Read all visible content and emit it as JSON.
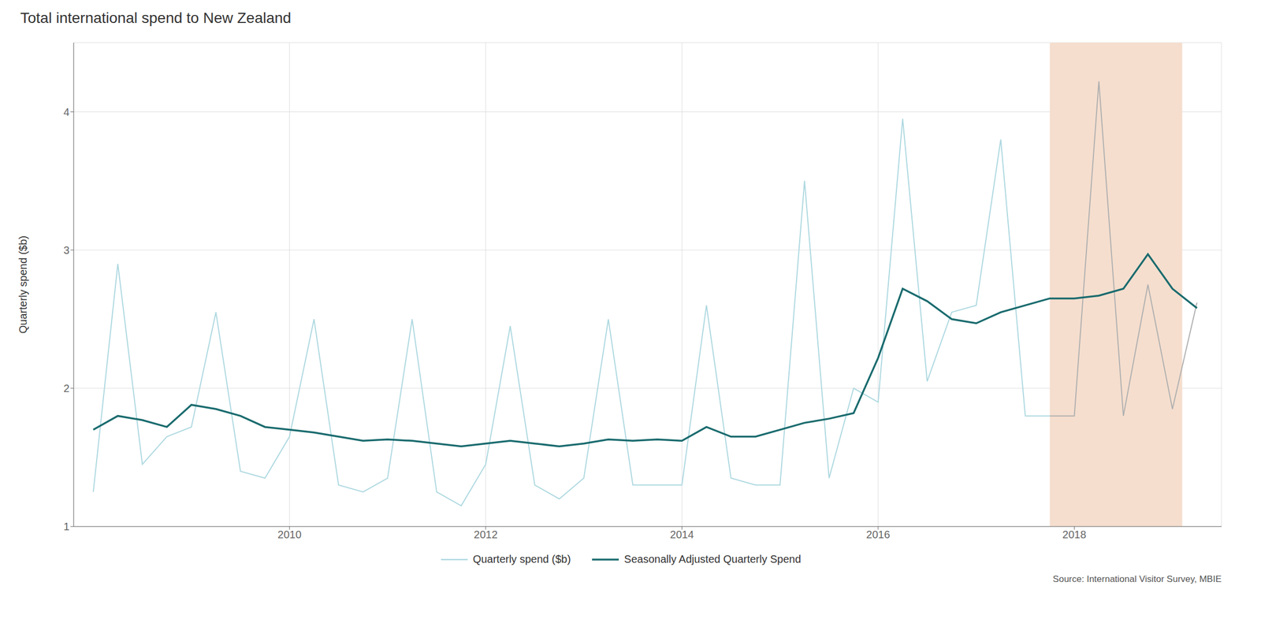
{
  "chart_data": {
    "type": "line",
    "title": "Total international spend to New Zealand",
    "ylabel": "Quarterly spend ($b)",
    "source": "Source: International Visitor Survey, MBIE",
    "x": [
      2008.0,
      2008.25,
      2008.5,
      2008.75,
      2009.0,
      2009.25,
      2009.5,
      2009.75,
      2010.0,
      2010.25,
      2010.5,
      2010.75,
      2011.0,
      2011.25,
      2011.5,
      2011.75,
      2012.0,
      2012.25,
      2012.5,
      2012.75,
      2013.0,
      2013.25,
      2013.5,
      2013.75,
      2014.0,
      2014.25,
      2014.5,
      2014.75,
      2015.0,
      2015.25,
      2015.5,
      2015.75,
      2016.0,
      2016.25,
      2016.5,
      2016.75,
      2017.0,
      2017.25,
      2017.5,
      2017.75,
      2018.0,
      2018.25,
      2018.5,
      2018.75,
      2019.0,
      2019.25
    ],
    "series": [
      {
        "name": "Quarterly spend ($b)",
        "color": "#add8e0",
        "colors": [
          "#add8e0",
          "#add8e0",
          "#add8e0",
          "#add8e0",
          "#add8e0",
          "#add8e0",
          "#add8e0",
          "#add8e0",
          "#add8e0",
          "#add8e0",
          "#add8e0",
          "#add8e0",
          "#add8e0",
          "#add8e0",
          "#add8e0",
          "#add8e0",
          "#add8e0",
          "#add8e0",
          "#add8e0",
          "#add8e0",
          "#add8e0",
          "#add8e0",
          "#add8e0",
          "#add8e0",
          "#add8e0",
          "#add8e0",
          "#add8e0",
          "#add8e0",
          "#add8e0",
          "#add8e0",
          "#add8e0",
          "#add8e0",
          "#add8e0",
          "#add8e0",
          "#add8e0",
          "#add8e0",
          "#add8e0",
          "#add8e0",
          "#add8e0",
          "#b0b0b0",
          "#b0b0b0",
          "#b0b0b0",
          "#b0b0b0",
          "#b0b0b0",
          "#b0b0b0",
          "#b0b0b0"
        ],
        "values": [
          1.25,
          2.9,
          1.45,
          1.65,
          1.72,
          2.55,
          1.4,
          1.35,
          1.65,
          2.5,
          1.3,
          1.25,
          1.35,
          2.5,
          1.25,
          1.15,
          1.45,
          2.45,
          1.3,
          1.2,
          1.35,
          2.5,
          1.3,
          1.3,
          1.3,
          2.6,
          1.35,
          1.3,
          1.3,
          3.5,
          1.35,
          2.0,
          1.9,
          3.95,
          2.05,
          2.55,
          2.6,
          3.8,
          1.8,
          1.8,
          1.8,
          4.22,
          1.8,
          2.75,
          1.85,
          2.62
        ]
      },
      {
        "name": "Seasonally Adjusted Quarterly Spend",
        "color": "#1a6b6e",
        "values": [
          1.7,
          1.8,
          1.77,
          1.72,
          1.88,
          1.85,
          1.8,
          1.72,
          1.7,
          1.68,
          1.65,
          1.62,
          1.63,
          1.62,
          1.6,
          1.58,
          1.6,
          1.62,
          1.6,
          1.58,
          1.6,
          1.63,
          1.62,
          1.63,
          1.62,
          1.72,
          1.65,
          1.65,
          1.7,
          1.75,
          1.78,
          1.82,
          2.22,
          2.72,
          2.63,
          2.5,
          2.47,
          2.55,
          2.6,
          2.65,
          2.65,
          2.67,
          2.72,
          2.97,
          2.72,
          2.58
        ]
      }
    ],
    "highlight": {
      "start": 2017.75,
      "end": 2019.1,
      "color": "#f5dece"
    },
    "xlim": [
      2007.8,
      2019.5
    ],
    "xticks": [
      2010,
      2012,
      2014,
      2016,
      2018
    ],
    "ylim": [
      1.0,
      4.5
    ],
    "yticks": [
      1,
      2,
      3,
      4
    ],
    "grid": true
  }
}
